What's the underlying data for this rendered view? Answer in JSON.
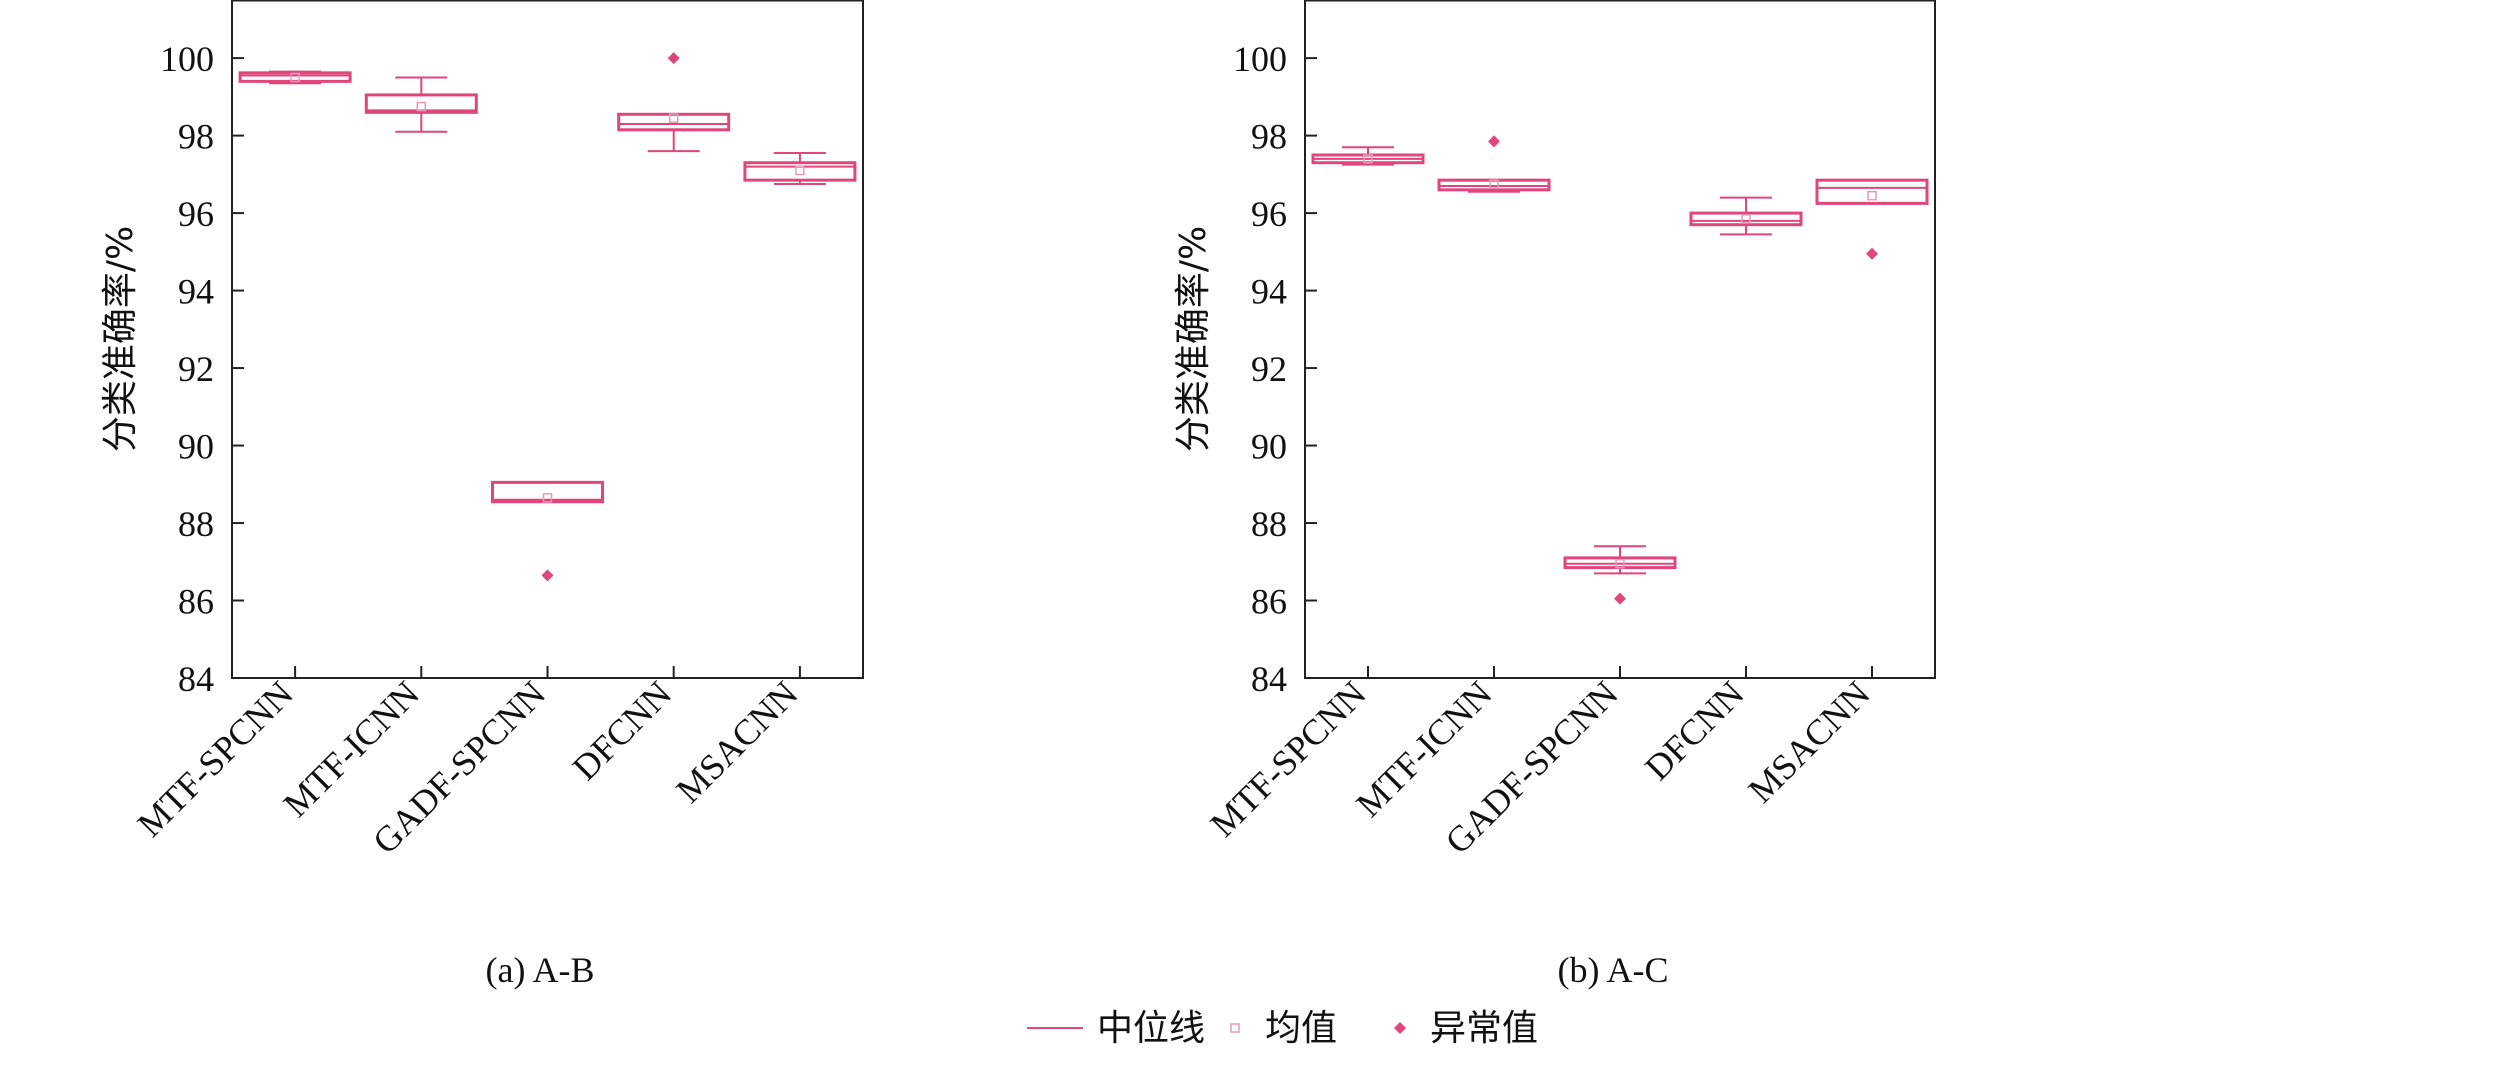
{
  "colors": {
    "box": "#e0457b",
    "outlier": "#e0457b",
    "mean": "#e89ab8",
    "axis": "#222222"
  },
  "legend": {
    "position": "bottom-center",
    "items": [
      {
        "label": "中位线",
        "symbol": "line"
      },
      {
        "label": "均值",
        "symbol": "mean"
      },
      {
        "label": "异常值",
        "symbol": "outlier"
      }
    ]
  },
  "chart_data": [
    {
      "type": "box",
      "caption": "(a) A-B",
      "ylabel": "分类准确率/%",
      "ylim": [
        84,
        101.5
      ],
      "yticks": [
        84,
        86,
        88,
        90,
        92,
        94,
        96,
        98,
        100
      ],
      "grid": false,
      "categories": [
        "MTF-SPCNN",
        "MTF-ICNN",
        "GADF-SPCNN",
        "DFCNN",
        "MSACNN"
      ],
      "boxes": [
        {
          "min": 99.35,
          "q1": 99.4,
          "median": 99.55,
          "q3": 99.62,
          "max": 99.65,
          "mean": 99.5,
          "outliers": []
        },
        {
          "min": 98.1,
          "q1": 98.6,
          "median": 98.65,
          "q3": 99.05,
          "max": 99.5,
          "mean": 98.75,
          "outliers": []
        },
        {
          "min": 88.55,
          "q1": 88.55,
          "median": 88.6,
          "q3": 89.05,
          "max": 89.05,
          "mean": 88.65,
          "outliers": [
            86.65
          ]
        },
        {
          "min": 97.6,
          "q1": 98.15,
          "median": 98.3,
          "q3": 98.55,
          "max": 98.55,
          "mean": 98.45,
          "outliers": [
            100.0
          ]
        },
        {
          "min": 96.75,
          "q1": 96.85,
          "median": 97.2,
          "q3": 97.3,
          "max": 97.55,
          "mean": 97.1,
          "outliers": []
        }
      ]
    },
    {
      "type": "box",
      "caption": "(b) A-C",
      "ylabel": "分类准确率/%",
      "ylim": [
        84,
        101.5
      ],
      "yticks": [
        84,
        86,
        88,
        90,
        92,
        94,
        96,
        98,
        100
      ],
      "grid": false,
      "categories": [
        "MTF-SPCNN",
        "MTF-ICNN",
        "GADF-SPCNN",
        "DFCNN",
        "MSACNN"
      ],
      "boxes": [
        {
          "min": 97.25,
          "q1": 97.3,
          "median": 97.4,
          "q3": 97.5,
          "max": 97.7,
          "mean": 97.4,
          "outliers": []
        },
        {
          "min": 96.55,
          "q1": 96.6,
          "median": 96.7,
          "q3": 96.85,
          "max": 96.85,
          "mean": 96.75,
          "outliers": [
            97.85
          ]
        },
        {
          "min": 86.7,
          "q1": 86.85,
          "median": 86.95,
          "q3": 87.1,
          "max": 87.4,
          "mean": 86.95,
          "outliers": [
            86.05
          ]
        },
        {
          "min": 95.45,
          "q1": 95.7,
          "median": 95.8,
          "q3": 96.0,
          "max": 96.4,
          "mean": 95.85,
          "outliers": []
        },
        {
          "min": 96.25,
          "q1": 96.25,
          "median": 96.65,
          "q3": 96.85,
          "max": 96.85,
          "mean": 96.45,
          "outliers": [
            94.95
          ]
        }
      ]
    }
  ]
}
